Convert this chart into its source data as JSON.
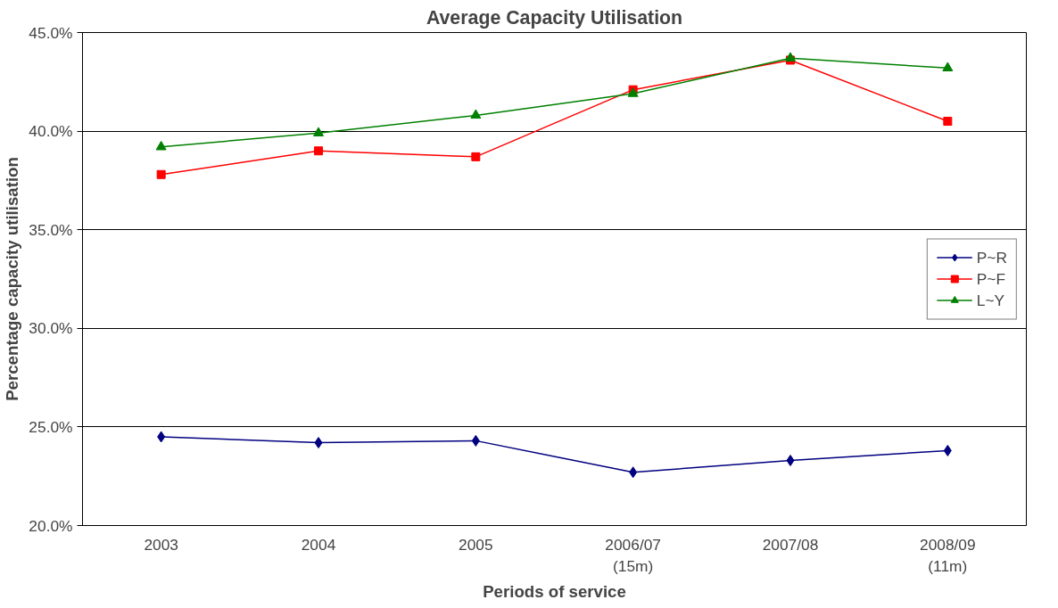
{
  "chart_data": {
    "type": "line",
    "title": "Average Capacity Utilisation",
    "xlabel": "Periods of service",
    "ylabel": "Percentage capacity utilisation",
    "categories": [
      "2003",
      "2004",
      "2005",
      "2006/07\n(15m)",
      "2007/08",
      "2008/09\n(11m)"
    ],
    "series": [
      {
        "name": "P~R",
        "color": "#000080",
        "marker": "diamond",
        "values": [
          24.5,
          24.2,
          24.3,
          22.7,
          23.3,
          23.8
        ]
      },
      {
        "name": "P~F",
        "color": "#ff0000",
        "marker": "square",
        "values": [
          37.8,
          39.0,
          38.7,
          42.1,
          43.6,
          40.5
        ]
      },
      {
        "name": "L~Y",
        "color": "#008000",
        "marker": "triangle",
        "values": [
          39.2,
          39.9,
          40.8,
          41.9,
          43.7,
          43.2
        ]
      }
    ],
    "ylim": [
      20,
      45
    ],
    "yticks": [
      {
        "value": 20,
        "label": "20.0%"
      },
      {
        "value": 25,
        "label": "25.0%"
      },
      {
        "value": 30,
        "label": "30.0%"
      },
      {
        "value": 35,
        "label": "35.0%"
      },
      {
        "value": 40,
        "label": "40.0%"
      },
      {
        "value": 45,
        "label": "45.0%"
      }
    ],
    "grid": "y",
    "legend": "right",
    "line_style": "solid"
  }
}
